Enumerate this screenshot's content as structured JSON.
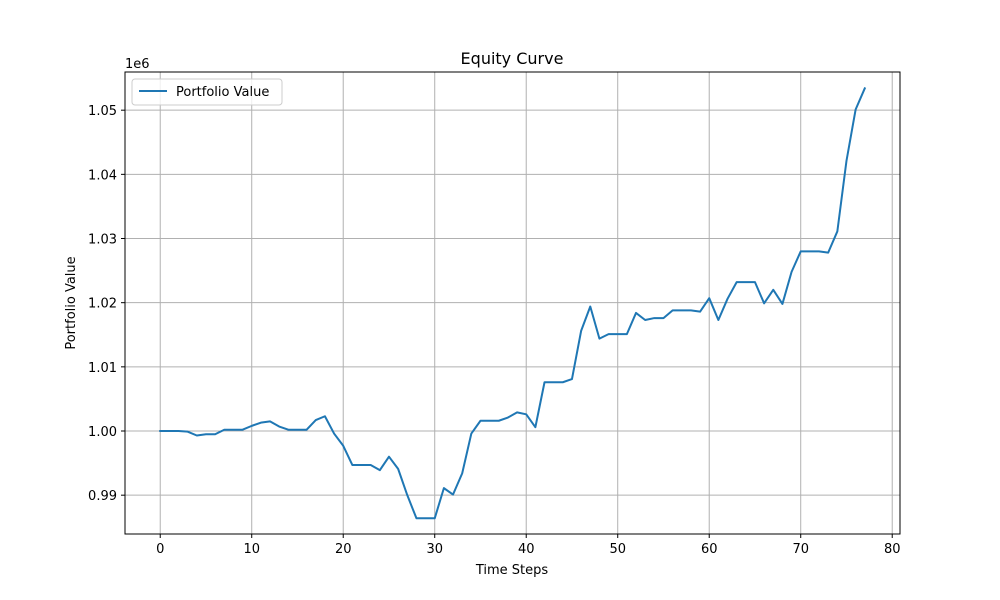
{
  "chart_data": {
    "type": "line",
    "title": "Equity Curve",
    "xlabel": "Time Steps",
    "ylabel": "Portfolio Value",
    "y_offset_label": "1e6",
    "xlim": [
      -3.85,
      80.85
    ],
    "ylim": [
      0.98395,
      1.05595
    ],
    "x_ticks": [
      0,
      10,
      20,
      30,
      40,
      50,
      60,
      70,
      80
    ],
    "y_ticks": [
      0.99,
      1.0,
      1.01,
      1.02,
      1.03,
      1.04,
      1.05
    ],
    "y_tick_labels": [
      "0.99",
      "1.00",
      "1.01",
      "1.02",
      "1.03",
      "1.04",
      "1.05"
    ],
    "grid": true,
    "legend_position": "top-left",
    "series": [
      {
        "name": "Portfolio Value",
        "color": "#1f77b4",
        "x": [
          0,
          1,
          2,
          3,
          4,
          5,
          6,
          7,
          8,
          9,
          10,
          11,
          12,
          13,
          14,
          15,
          16,
          17,
          18,
          19,
          20,
          21,
          22,
          23,
          24,
          25,
          26,
          27,
          28,
          29,
          30,
          31,
          32,
          33,
          34,
          35,
          36,
          37,
          38,
          39,
          40,
          41,
          42,
          43,
          44,
          45,
          46,
          47,
          48,
          49,
          50,
          51,
          52,
          53,
          54,
          55,
          56,
          57,
          58,
          59,
          60,
          61,
          62,
          63,
          64,
          65,
          66,
          67,
          68,
          69,
          70,
          71,
          72,
          73,
          74,
          75,
          76,
          77
        ],
        "values": [
          1.0,
          1.0,
          1.0,
          0.9999,
          0.9993,
          0.9995,
          0.9995,
          1.0002,
          1.0002,
          1.0002,
          1.0008,
          1.0013,
          1.0015,
          1.0007,
          1.0002,
          1.0002,
          1.0002,
          1.0017,
          1.0023,
          0.9996,
          0.9977,
          0.9947,
          0.9947,
          0.9947,
          0.9939,
          0.996,
          0.9941,
          0.99,
          0.9864,
          0.9864,
          0.9864,
          0.9911,
          0.9901,
          0.9934,
          0.9996,
          1.0016,
          1.0016,
          1.0016,
          1.0021,
          1.0029,
          1.0026,
          1.0006,
          1.0076,
          1.0076,
          1.0076,
          1.0081,
          1.0156,
          1.0194,
          1.0144,
          1.0151,
          1.0151,
          1.0151,
          1.0184,
          1.0173,
          1.0176,
          1.0176,
          1.0188,
          1.0188,
          1.0188,
          1.0186,
          1.0207,
          1.0173,
          1.0206,
          1.0232,
          1.0232,
          1.0232,
          1.0199,
          1.022,
          1.0198,
          1.0248,
          1.028,
          1.028,
          1.028,
          1.0278,
          1.0311,
          1.0421,
          1.0501,
          1.0534
        ]
      }
    ]
  }
}
